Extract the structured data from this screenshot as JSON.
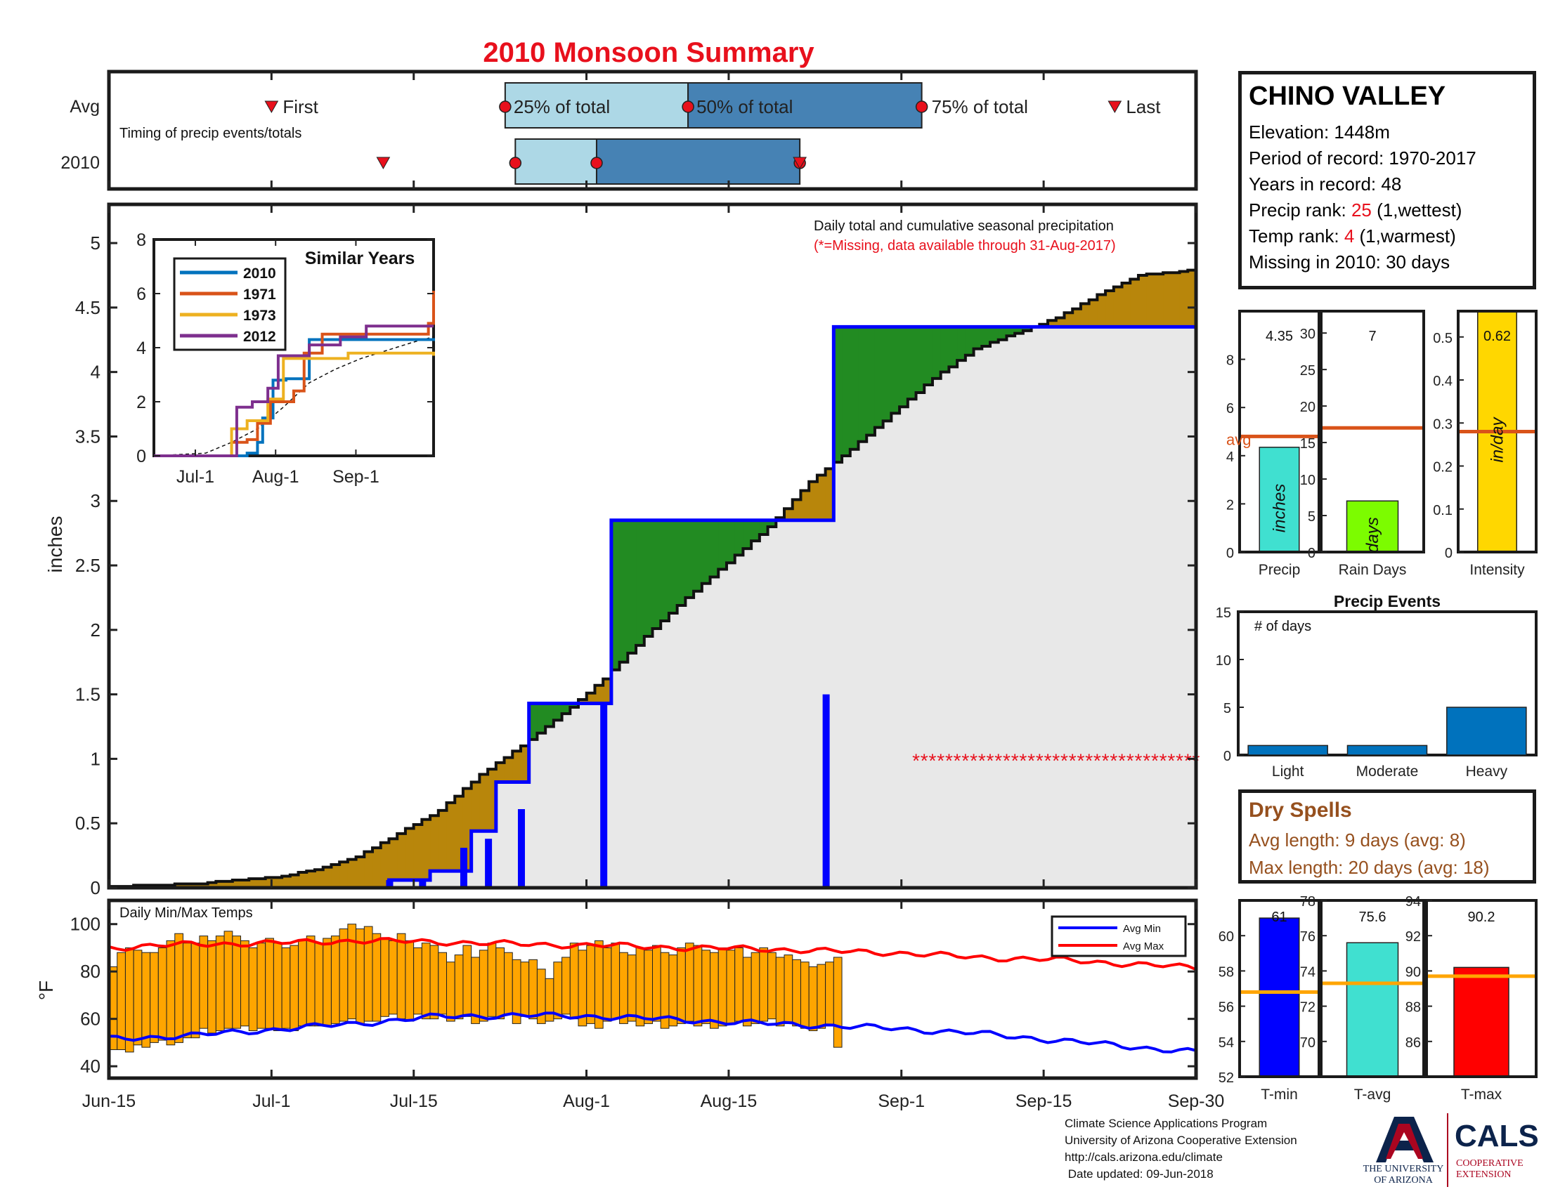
{
  "title": "2010 Monsoon Summary",
  "station": {
    "name": "CHINO VALLEY",
    "elevation": "Elevation: 1448m",
    "period": "Period of record: 1970-2017",
    "years": "Years in record: 48",
    "precip_rank_label": "Precip rank: ",
    "precip_rank_value": "25",
    "precip_rank_note": " (1,wettest)",
    "temp_rank_label": "Temp rank: ",
    "temp_rank_value": "4",
    "temp_rank_note": " (1,warmest)",
    "missing": "Missing in 2010: 30 days"
  },
  "colors": {
    "title_red": "#e8101c",
    "avg_bar_light": "#add8e6",
    "avg_bar_dark": "#4682b4",
    "cumulative_current": "#0000ff",
    "above_avg_fill": "#228b22",
    "below_avg_fill": "#b8860b",
    "base_fill": "#e8e8e8",
    "temp_bars": "#ffa500",
    "avg_min": "#0000ff",
    "avg_max": "#ff0000"
  },
  "dates": {
    "ticks": [
      "Jun-15",
      "Jul-1",
      "Jul-15",
      "Aug-1",
      "Aug-15",
      "Sep-1",
      "Sep-15",
      "Sep-30"
    ]
  },
  "timing": {
    "label_avg": "Avg",
    "label_year": "2010",
    "subtitle": "Timing of precip events/totals",
    "first_label": "First",
    "last_label": "Last",
    "p25_label": "25% of total",
    "p50_label": "50% of total",
    "p75_label": "75% of total",
    "avg": {
      "first": "Jul-1",
      "p25": "Jul-24",
      "p50": "Aug-11",
      "p75": "Sep-3",
      "last": "Sep-22"
    },
    "year": {
      "first": "Jul-12",
      "p25": "Jul-25",
      "p50": "Aug-2",
      "p75": "Aug-22"
    }
  },
  "precip_chart": {
    "title": "Daily total and cumulative seasonal precipitation",
    "subtitle": "(*=Missing, data available through 31-Aug-2017)",
    "ylabel": "inches",
    "ylim": [
      0,
      5.3
    ],
    "yticks": [
      "0",
      "0.5",
      "1",
      "1.5",
      "2",
      "2.5",
      "3",
      "3.5",
      "4",
      "4.5",
      "5"
    ],
    "missing_marker": "*"
  },
  "similar_years": {
    "title": "Similar Years",
    "yticks": [
      "0",
      "2",
      "4",
      "6",
      "8"
    ],
    "xticks": [
      "Jul-1",
      "Aug-1",
      "Sep-1"
    ],
    "series": [
      {
        "name": "2010",
        "color": "#0072bd"
      },
      {
        "name": "1971",
        "color": "#d95319"
      },
      {
        "name": "1973",
        "color": "#edb120"
      },
      {
        "name": "2012",
        "color": "#7e2f8e"
      }
    ]
  },
  "temp_chart": {
    "title": "Daily Min/Max Temps",
    "ylabel": "°F",
    "yticks": [
      "40",
      "60",
      "80",
      "100"
    ],
    "legend_min": "Avg Min",
    "legend_max": "Avg Max"
  },
  "summary_bars": {
    "precip": {
      "label": "Precip",
      "value": "4.35",
      "unit": "inches",
      "value_num": 4.35,
      "avg": 4.8,
      "ylim": [
        0,
        10
      ],
      "yticks": [
        "0",
        "2",
        "4",
        "6",
        "8"
      ],
      "avg_label": "avg",
      "color": "#40e0d0"
    },
    "rain_days": {
      "label": "Rain Days",
      "value": "7",
      "unit": "days",
      "value_num": 7,
      "avg": 17,
      "ylim": [
        0,
        33
      ],
      "yticks": [
        "0",
        "5",
        "10",
        "15",
        "20",
        "25",
        "30"
      ],
      "color": "#7cfc00"
    },
    "intensity": {
      "label": "Intensity",
      "value": "0.62",
      "unit": "in/day",
      "value_num": 0.62,
      "avg": 0.28,
      "ylim": [
        0,
        0.56
      ],
      "yticks": [
        "0",
        "0.1",
        "0.2",
        "0.3",
        "0.4",
        "0.5"
      ],
      "color": "#ffd700"
    }
  },
  "precip_events": {
    "title": "Precip Events",
    "ylabel": "# of days",
    "ylim": [
      0,
      15
    ],
    "yticks": [
      "0",
      "5",
      "10",
      "15"
    ],
    "categories": [
      "Light",
      "Moderate",
      "Heavy"
    ],
    "values": [
      1,
      1,
      5
    ]
  },
  "dry_spells": {
    "title": "Dry Spells",
    "avg_length": "Avg length: 9 days (avg: 8)",
    "max_length": "Max length: 20 days (avg: 18)"
  },
  "temp_bars": {
    "tmin": {
      "label": "T-min",
      "value": "61",
      "value_num": 61,
      "avg": 56.8,
      "ylim": [
        52,
        62
      ],
      "yticks": [
        "52",
        "54",
        "56",
        "58",
        "60"
      ],
      "color": "#0000ff"
    },
    "tavg": {
      "label": "T-avg",
      "value": "75.6",
      "value_num": 75.6,
      "avg": 73.3,
      "ylim": [
        68,
        78
      ],
      "yticks": [
        "70",
        "72",
        "74",
        "76",
        "78"
      ],
      "color": "#40e0d0"
    },
    "tmax": {
      "label": "T-max",
      "value": "90.2",
      "value_num": 90.2,
      "avg": 89.7,
      "ylim": [
        84,
        94
      ],
      "yticks": [
        "86",
        "88",
        "90",
        "92",
        "94"
      ],
      "color": "#ff0000"
    }
  },
  "footer": {
    "line1": "Climate Science Applications Program",
    "line2": "University of Arizona Cooperative Extension",
    "line3": "http://cals.arizona.edu/climate",
    "line4": " Date updated: 09-Jun-2018"
  },
  "logos": {
    "ua_text1": "THE UNIVERSITY",
    "ua_text2": "OF ARIZONA",
    "cals": "CALS",
    "cals_sub1": "COOPERATIVE",
    "cals_sub2": "EXTENSION"
  },
  "chart_data": [
    {
      "type": "area",
      "name": "cumulative precipitation",
      "x_start": "Jun-15",
      "x_end": "Sep-30",
      "ylim": [
        0,
        5.3
      ],
      "avg_cumulative": [
        [
          0,
          0.01
        ],
        [
          10,
          0.03
        ],
        [
          20,
          0.08
        ],
        [
          25,
          0.14
        ],
        [
          30,
          0.24
        ],
        [
          35,
          0.42
        ],
        [
          40,
          0.6
        ],
        [
          45,
          0.88
        ],
        [
          50,
          1.1
        ],
        [
          55,
          1.35
        ],
        [
          60,
          1.62
        ],
        [
          65,
          1.95
        ],
        [
          70,
          2.25
        ],
        [
          75,
          2.52
        ],
        [
          80,
          2.8
        ],
        [
          85,
          3.15
        ],
        [
          90,
          3.4
        ],
        [
          95,
          3.68
        ],
        [
          100,
          3.95
        ],
        [
          105,
          4.18
        ],
        [
          110,
          4.3
        ],
        [
          115,
          4.42
        ],
        [
          120,
          4.6
        ],
        [
          125,
          4.75
        ],
        [
          130,
          4.78
        ],
        [
          132,
          4.8
        ]
      ],
      "current_cumulative": [
        [
          0,
          0.0
        ],
        [
          33,
          0.0
        ],
        [
          34,
          0.06
        ],
        [
          38,
          0.06
        ],
        [
          39,
          0.13
        ],
        [
          43,
          0.13
        ],
        [
          44,
          0.44
        ],
        [
          46,
          0.44
        ],
        [
          47,
          0.82
        ],
        [
          50,
          0.82
        ],
        [
          51,
          1.43
        ],
        [
          60,
          1.43
        ],
        [
          61,
          2.85
        ],
        [
          87,
          2.85
        ],
        [
          88,
          4.35
        ],
        [
          132,
          4.35
        ]
      ],
      "daily_bars": [
        [
          34,
          0.06
        ],
        [
          38,
          0.07
        ],
        [
          43,
          0.31
        ],
        [
          46,
          0.38
        ],
        [
          50,
          0.61
        ],
        [
          60,
          1.42
        ],
        [
          87,
          1.5
        ]
      ],
      "missing_from": 98,
      "missing_to": 132
    },
    {
      "type": "bar",
      "name": "daily min/max temps",
      "ylim": [
        35,
        110
      ],
      "ranges": [
        [
          47,
          82
        ],
        [
          47,
          88
        ],
        [
          46,
          90
        ],
        [
          49,
          89
        ],
        [
          48,
          88
        ],
        [
          50,
          88
        ],
        [
          51,
          90
        ],
        [
          49,
          93
        ],
        [
          50,
          96
        ],
        [
          52,
          92
        ],
        [
          52,
          92
        ],
        [
          56,
          95
        ],
        [
          54,
          93
        ],
        [
          55,
          95
        ],
        [
          56,
          97
        ],
        [
          56,
          95
        ],
        [
          57,
          93
        ],
        [
          55,
          90
        ],
        [
          56,
          92
        ],
        [
          56,
          94
        ],
        [
          55,
          92
        ],
        [
          56,
          90
        ],
        [
          55,
          91
        ],
        [
          57,
          93
        ],
        [
          57,
          95
        ],
        [
          57,
          92
        ],
        [
          57,
          94
        ],
        [
          58,
          95
        ],
        [
          59,
          98
        ],
        [
          60,
          100
        ],
        [
          58,
          98
        ],
        [
          59,
          99
        ],
        [
          59,
          96
        ],
        [
          61,
          94
        ],
        [
          62,
          93
        ],
        [
          60,
          96
        ],
        [
          59,
          93
        ],
        [
          62,
          90
        ],
        [
          60,
          92
        ],
        [
          60,
          91
        ],
        [
          62,
          88
        ],
        [
          59,
          84
        ],
        [
          60,
          87
        ],
        [
          61,
          91
        ],
        [
          58,
          86
        ],
        [
          59,
          89
        ],
        [
          61,
          92
        ],
        [
          60,
          90
        ],
        [
          62,
          88
        ],
        [
          58,
          85
        ],
        [
          61,
          84
        ],
        [
          60,
          85
        ],
        [
          58,
          81
        ],
        [
          59,
          77
        ],
        [
          60,
          84
        ],
        [
          62,
          86
        ],
        [
          60,
          92
        ],
        [
          57,
          89
        ],
        [
          58,
          91
        ],
        [
          56,
          93
        ],
        [
          59,
          90
        ],
        [
          60,
          92
        ],
        [
          58,
          88
        ],
        [
          59,
          87
        ],
        [
          57,
          90
        ],
        [
          58,
          89
        ],
        [
          59,
          91
        ],
        [
          56,
          88
        ],
        [
          57,
          87
        ],
        [
          58,
          90
        ],
        [
          59,
          92
        ],
        [
          57,
          91
        ],
        [
          58,
          89
        ],
        [
          56,
          88
        ],
        [
          57,
          90
        ],
        [
          58,
          89
        ],
        [
          59,
          90
        ],
        [
          57,
          86
        ],
        [
          58,
          88
        ],
        [
          59,
          90
        ],
        [
          60,
          88
        ],
        [
          57,
          86
        ],
        [
          58,
          87
        ],
        [
          57,
          85
        ],
        [
          56,
          84
        ],
        [
          55,
          82
        ],
        [
          56,
          83
        ],
        [
          57,
          84
        ],
        [
          48,
          86
        ]
      ],
      "avg_min": [
        [
          0,
          51.5
        ],
        [
          10,
          53
        ],
        [
          20,
          55.5
        ],
        [
          30,
          58
        ],
        [
          40,
          61
        ],
        [
          50,
          61.5
        ],
        [
          60,
          61
        ],
        [
          70,
          59.5
        ],
        [
          80,
          58
        ],
        [
          88,
          57
        ],
        [
          95,
          56
        ],
        [
          105,
          54
        ],
        [
          115,
          51
        ],
        [
          125,
          48
        ],
        [
          132,
          46
        ]
      ],
      "avg_max": [
        [
          0,
          90
        ],
        [
          10,
          91.5
        ],
        [
          20,
          92
        ],
        [
          30,
          93
        ],
        [
          40,
          92.5
        ],
        [
          50,
          91.5
        ],
        [
          60,
          91
        ],
        [
          70,
          90
        ],
        [
          80,
          89.5
        ],
        [
          88,
          88.5
        ],
        [
          95,
          88
        ],
        [
          105,
          86
        ],
        [
          115,
          85
        ],
        [
          125,
          83
        ],
        [
          132,
          81.5
        ]
      ]
    },
    {
      "type": "line",
      "name": "similar years inset",
      "x_range_days": [
        0,
        108
      ],
      "ylim": [
        0,
        8
      ],
      "series": [
        {
          "name": "2010",
          "points": [
            [
              0,
              0
            ],
            [
              35,
              0
            ],
            [
              36,
              0.1
            ],
            [
              40,
              0.5
            ],
            [
              42,
              1.4
            ],
            [
              46,
              2.8
            ],
            [
              50,
              2.8
            ],
            [
              51,
              2.85
            ],
            [
              60,
              4.3
            ],
            [
              108,
              4.35
            ]
          ]
        },
        {
          "name": "1971",
          "points": [
            [
              0,
              0
            ],
            [
              25,
              0
            ],
            [
              30,
              0.5
            ],
            [
              36,
              0.6
            ],
            [
              40,
              1.2
            ],
            [
              45,
              2.0
            ],
            [
              54,
              2.4
            ],
            [
              58,
              3.8
            ],
            [
              65,
              4.5
            ],
            [
              80,
              4.5
            ],
            [
              100,
              4.5
            ],
            [
              106,
              4.9
            ],
            [
              108,
              6.1
            ]
          ]
        },
        {
          "name": "1973",
          "points": [
            [
              0,
              0
            ],
            [
              28,
              0
            ],
            [
              30,
              1.0
            ],
            [
              36,
              1.3
            ],
            [
              44,
              2.1
            ],
            [
              50,
              3.6
            ],
            [
              62,
              3.6
            ],
            [
              75,
              3.8
            ],
            [
              108,
              3.7
            ]
          ]
        },
        {
          "name": "2012",
          "points": [
            [
              0,
              0
            ],
            [
              28,
              0
            ],
            [
              32,
              1.8
            ],
            [
              38,
              2.0
            ],
            [
              44,
              2.5
            ],
            [
              48,
              3.7
            ],
            [
              60,
              4.1
            ],
            [
              72,
              4.4
            ],
            [
              82,
              4.8
            ],
            [
              108,
              4.8
            ]
          ]
        }
      ],
      "avg_points": [
        [
          0,
          0
        ],
        [
          20,
          0.1
        ],
        [
          30,
          0.5
        ],
        [
          40,
          1.0
        ],
        [
          50,
          1.8
        ],
        [
          60,
          2.7
        ],
        [
          70,
          3.2
        ],
        [
          80,
          3.6
        ],
        [
          90,
          3.9
        ],
        [
          100,
          4.2
        ],
        [
          108,
          4.4
        ]
      ]
    }
  ]
}
